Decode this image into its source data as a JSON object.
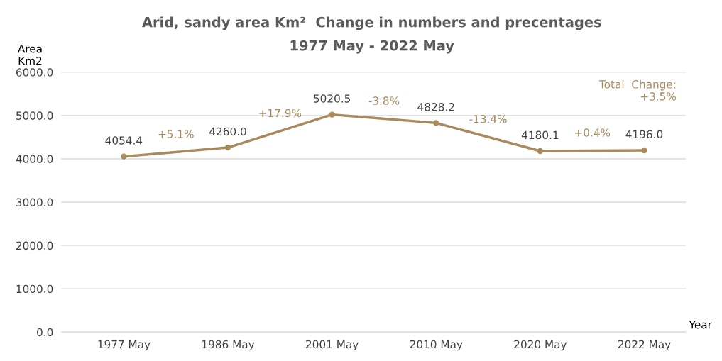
{
  "chart_data": {
    "type": "line",
    "title": "Arid, sandy area Km²  Change in numbers and precentages",
    "subtitle": "1977 May - 2022 May",
    "ylabel": "Area\nKm2",
    "xlabel": "Year",
    "categories": [
      "1977 May",
      "1986 May",
      "2001 May",
      "2010 May",
      "2020 May",
      "2022 May"
    ],
    "series": [
      {
        "color": "#a88a5c",
        "values": [
          4054.4,
          4260.0,
          5020.5,
          4828.2,
          4180.1,
          4196.0
        ],
        "value_labels": [
          "4054.4",
          "4260.0",
          "5020.5",
          "4828.2",
          "4180.1",
          "4196.0"
        ]
      }
    ],
    "annotations": [
      "+5.1%",
      "+17.9%",
      "-3.8%",
      "-13.4%",
      "+0.4%",
      "Total  Change:\n+3.5%"
    ],
    "ylim": [
      0,
      6000
    ],
    "yticks": [
      {
        "value": 0,
        "label": "0.0"
      },
      {
        "value": 1000,
        "label": "1000.0"
      },
      {
        "value": 2000,
        "label": "2000.0"
      },
      {
        "value": 3000,
        "label": "3000.0"
      },
      {
        "value": 4000,
        "label": "4000.0"
      },
      {
        "value": 5000,
        "label": "5000.0"
      },
      {
        "value": 6000,
        "label": "6000.0"
      }
    ],
    "grid": "y",
    "marker": "circle",
    "line_style": "solid"
  }
}
